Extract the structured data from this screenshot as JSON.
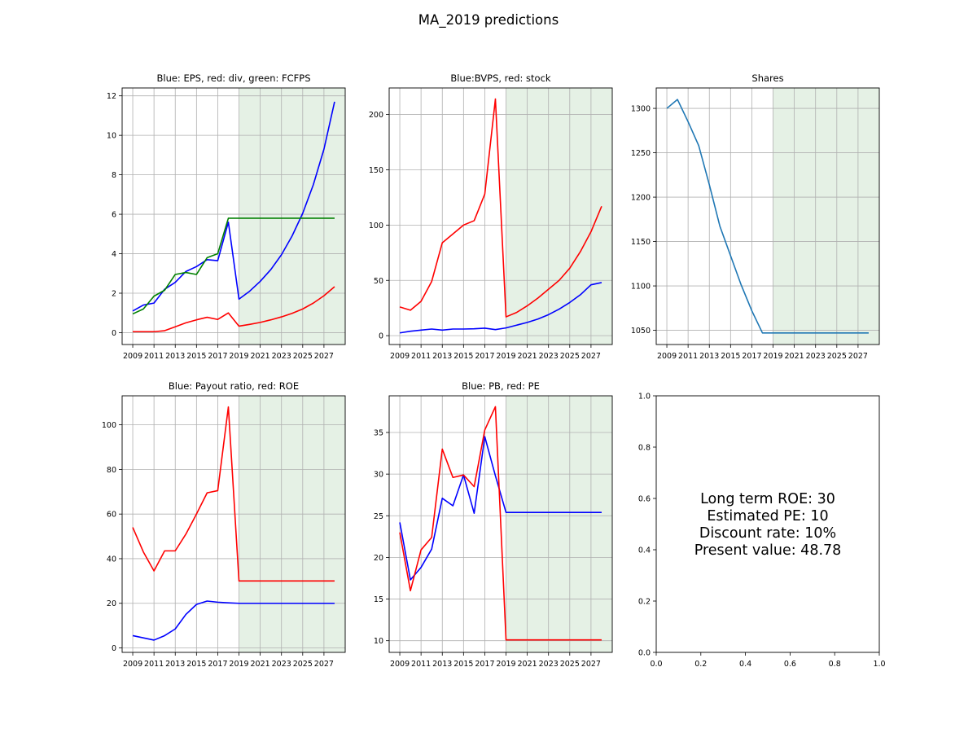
{
  "figure": {
    "suptitle": "MA_2019 predictions",
    "info_lines": [
      "Long term ROE: 30",
      "Estimated PE:  10",
      "Discount rate: 10%",
      "Present value: 48.78"
    ]
  },
  "chart_data": [
    {
      "type": "line",
      "title": "Blue: EPS, red: div, green: FCFPS",
      "x": [
        2009,
        2010,
        2011,
        2012,
        2013,
        2014,
        2015,
        2016,
        2017,
        2018,
        2019,
        2020,
        2021,
        2022,
        2023,
        2024,
        2025,
        2026,
        2027,
        2028
      ],
      "xlim": [
        2008,
        2029.0
      ],
      "ylim": [
        -0.6,
        12.4
      ],
      "xticks": [
        "2009",
        "2011",
        "2013",
        "2015",
        "2017",
        "2019",
        "2021",
        "2023",
        "2025",
        "2027"
      ],
      "yticks": [
        "0",
        "2",
        "4",
        "6",
        "8",
        "10",
        "12"
      ],
      "grid": true,
      "shaded_region": [
        2019,
        2029.0
      ],
      "shade_color": "#e5f1e5",
      "series": [
        {
          "color": "#0000ff",
          "values": [
            1.1,
            1.4,
            1.5,
            2.2,
            2.55,
            3.1,
            3.35,
            3.7,
            3.65,
            5.6,
            1.7,
            2.1,
            2.6,
            3.2,
            3.95,
            4.9,
            6.05,
            7.5,
            9.3,
            11.7
          ]
        },
        {
          "color": "#ff0000",
          "values": [
            0.05,
            0.05,
            0.05,
            0.1,
            0.3,
            0.5,
            0.65,
            0.78,
            0.67,
            1.0,
            0.33,
            0.42,
            0.52,
            0.65,
            0.8,
            0.98,
            1.2,
            1.5,
            1.87,
            2.33
          ]
        },
        {
          "color": "#008000",
          "values": [
            0.95,
            1.2,
            1.85,
            2.15,
            2.95,
            3.05,
            2.95,
            3.8,
            4.0,
            5.8,
            5.8,
            5.8,
            5.8,
            5.8,
            5.8,
            5.8,
            5.8,
            5.8,
            5.8,
            5.8
          ]
        }
      ]
    },
    {
      "type": "line",
      "title": "Blue:BVPS, red: stock",
      "x": [
        2009,
        2010,
        2011,
        2012,
        2013,
        2014,
        2015,
        2016,
        2017,
        2018,
        2019,
        2020,
        2021,
        2022,
        2023,
        2024,
        2025,
        2026,
        2027,
        2028
      ],
      "xlim": [
        2008,
        2029.0
      ],
      "ylim": [
        -8,
        224
      ],
      "xticks": [
        "2009",
        "2011",
        "2013",
        "2015",
        "2017",
        "2019",
        "2021",
        "2023",
        "2025",
        "2027"
      ],
      "yticks": [
        "0",
        "50",
        "100",
        "150",
        "200"
      ],
      "grid": true,
      "shaded_region": [
        2019,
        2029.0
      ],
      "shade_color": "#e5f1e5",
      "series": [
        {
          "color": "#0000ff",
          "values": [
            2.5,
            4.0,
            5.0,
            6.0,
            5.0,
            6.0,
            6.0,
            6.2,
            6.8,
            5.5,
            7.0,
            9.5,
            12.0,
            15.0,
            19.0,
            24.0,
            30.0,
            37.0,
            46.0,
            48.0
          ]
        },
        {
          "color": "#ff0000",
          "values": [
            26,
            23,
            31,
            49,
            84,
            92,
            100,
            104,
            128,
            214,
            17,
            21,
            27,
            34,
            42,
            50,
            61,
            76,
            94,
            117
          ]
        }
      ]
    },
    {
      "type": "line",
      "title": "Shares",
      "x": [
        2009,
        2010,
        2011,
        2012,
        2013,
        2014,
        2015,
        2016,
        2017,
        2018,
        2019,
        2020,
        2021,
        2022,
        2023,
        2024,
        2025,
        2026,
        2027,
        2028
      ],
      "xlim": [
        2008,
        2029.0
      ],
      "ylim": [
        1034,
        1323
      ],
      "xticks": [
        "2009",
        "2011",
        "2013",
        "2015",
        "2017",
        "2019",
        "2021",
        "2023",
        "2025",
        "2027"
      ],
      "yticks": [
        "1050",
        "1100",
        "1150",
        "1200",
        "1250",
        "1300"
      ],
      "grid": true,
      "shaded_region": [
        2019,
        2029.0
      ],
      "shade_color": "#e5f1e5",
      "series": [
        {
          "color": "#1f77b4",
          "values": [
            1300,
            1310,
            1285,
            1258,
            1214,
            1167,
            1134,
            1101,
            1072,
            1047,
            1047,
            1047,
            1047,
            1047,
            1047,
            1047,
            1047,
            1047,
            1047,
            1047
          ]
        }
      ]
    },
    {
      "type": "line",
      "title": "Blue: Payout ratio, red: ROE",
      "x": [
        2009,
        2010,
        2011,
        2012,
        2013,
        2014,
        2015,
        2016,
        2017,
        2018,
        2019,
        2020,
        2021,
        2022,
        2023,
        2024,
        2025,
        2026,
        2027,
        2028
      ],
      "xlim": [
        2008,
        2029.0
      ],
      "ylim": [
        -2,
        113
      ],
      "xticks": [
        "2009",
        "2011",
        "2013",
        "2015",
        "2017",
        "2019",
        "2021",
        "2023",
        "2025",
        "2027"
      ],
      "yticks": [
        "0",
        "20",
        "40",
        "60",
        "80",
        "100"
      ],
      "grid": true,
      "shaded_region": [
        2019,
        2029.0
      ],
      "shade_color": "#e5f1e5",
      "series": [
        {
          "color": "#0000ff",
          "values": [
            5.5,
            4.5,
            3.5,
            5.5,
            8.5,
            15,
            19.5,
            21,
            20.5,
            20.2,
            20,
            20,
            20,
            20,
            20,
            20,
            20,
            20,
            20,
            20
          ]
        },
        {
          "color": "#ff0000",
          "values": [
            54,
            43,
            34.5,
            43.5,
            43.5,
            51,
            60,
            69.5,
            70.5,
            108,
            30,
            30,
            30,
            30,
            30,
            30,
            30,
            30,
            30,
            30
          ]
        }
      ]
    },
    {
      "type": "line",
      "title": "Blue: PB, red: PE",
      "x": [
        2009,
        2010,
        2011,
        2012,
        2013,
        2014,
        2015,
        2016,
        2017,
        2018,
        2019,
        2020,
        2021,
        2022,
        2023,
        2024,
        2025,
        2026,
        2027,
        2028
      ],
      "xlim": [
        2008,
        2029.0
      ],
      "ylim": [
        8.6,
        39.4
      ],
      "xticks": [
        "2009",
        "2011",
        "2013",
        "2015",
        "2017",
        "2019",
        "2021",
        "2023",
        "2025",
        "2027"
      ],
      "yticks": [
        "10",
        "15",
        "20",
        "25",
        "30",
        "35"
      ],
      "grid": true,
      "shaded_region": [
        2019,
        2029.0
      ],
      "shade_color": "#e5f1e5",
      "series": [
        {
          "color": "#0000ff",
          "values": [
            24.2,
            17.3,
            18.8,
            21.0,
            27.1,
            26.2,
            29.9,
            25.3,
            34.5,
            29.8,
            25.4,
            25.4,
            25.4,
            25.4,
            25.4,
            25.4,
            25.4,
            25.4,
            25.4,
            25.4
          ]
        },
        {
          "color": "#ff0000",
          "values": [
            23.0,
            16.0,
            20.9,
            22.4,
            33.0,
            29.6,
            29.9,
            28.5,
            35.3,
            38.1,
            10.1,
            10.1,
            10.1,
            10.1,
            10.1,
            10.1,
            10.1,
            10.1,
            10.1,
            10.1
          ]
        }
      ]
    },
    {
      "type": "table",
      "title": "",
      "xlim": [
        0,
        1
      ],
      "ylim": [
        0,
        1
      ],
      "xticks": [
        "0.0",
        "0.2",
        "0.4",
        "0.6",
        "0.8",
        "1.0"
      ],
      "yticks": [
        "0.0",
        "0.2",
        "0.4",
        "0.6",
        "0.8",
        "1.0"
      ],
      "grid": false
    }
  ]
}
